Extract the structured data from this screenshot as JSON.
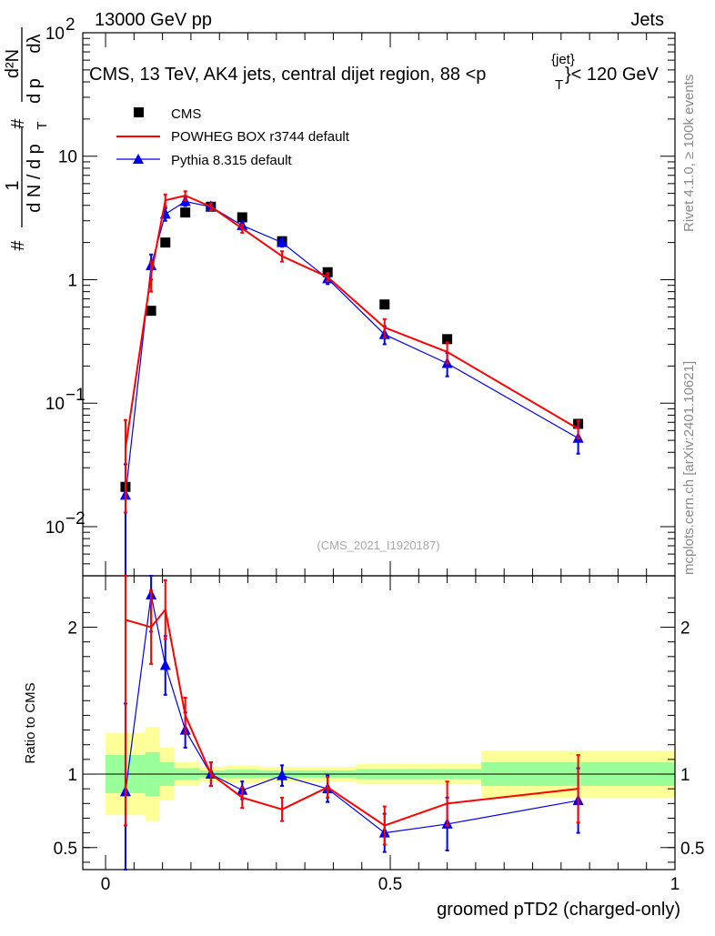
{
  "header": {
    "left": "13000 GeV pp",
    "right": "Jets"
  },
  "side_text": {
    "rivet": "Rivet 4.1.0, ≥ 100k events",
    "mcplots": "mcplots.cern.ch [arXiv:2401.10621]"
  },
  "chart_data": [
    {
      "type": "scatter",
      "panel": "main",
      "title_prefix": "CMS, 13 TeV, AK4 jets, central dijet region, 88 <",
      "title_pt": "p",
      "title_sub": "T",
      "title_sup": "{jet}",
      "title_suffix": "}< 120 GeV",
      "ylabel": {
        "hash1": "#",
        "one": "1",
        "dN": "d N / d p",
        "T": "T",
        "hash2": "#",
        "d2N": "d²N",
        "dpt": "d p",
        "dl": "dλ"
      },
      "ylog": true,
      "ylim": [
        0.004,
        100
      ],
      "xlim": [
        -0.04,
        1.0
      ],
      "yticks": [
        {
          "value": 100,
          "base": "10",
          "exp": "2"
        },
        {
          "value": 10,
          "base": "10",
          "exp": ""
        },
        {
          "value": 1,
          "base": "1",
          "exp": ""
        },
        {
          "value": 0.1,
          "base": "10",
          "exp": "−1"
        },
        {
          "value": 0.01,
          "base": "10",
          "exp": "−2"
        }
      ],
      "watermark": "(CMS_2021_I1920187)",
      "legend": [
        {
          "name": "CMS",
          "style": "square",
          "color": "#000000"
        },
        {
          "name": "POWHEG BOX r3744 default",
          "style": "line",
          "color": "#ff0000"
        },
        {
          "name": "Pythia 8.315 default",
          "style": "triangle",
          "color": "#0000ee"
        }
      ],
      "series": [
        {
          "name": "CMS",
          "color": "#000000",
          "x": [
            0.035,
            0.08,
            0.105,
            0.14,
            0.185,
            0.24,
            0.31,
            0.39,
            0.49,
            0.6,
            0.83
          ],
          "y": [
            0.021,
            0.56,
            2.0,
            3.5,
            3.9,
            3.2,
            2.05,
            1.15,
            0.63,
            0.33,
            0.068
          ]
        },
        {
          "name": "POWHEG BOX r3744 default",
          "color": "#ff0000",
          "x": [
            0.035,
            0.08,
            0.105,
            0.14,
            0.185,
            0.24,
            0.31,
            0.39,
            0.49,
            0.6,
            0.83
          ],
          "y": [
            0.043,
            1.1,
            4.4,
            4.8,
            3.9,
            2.6,
            1.55,
            1.05,
            0.41,
            0.26,
            0.062
          ],
          "err": [
            0.03,
            0.3,
            0.5,
            0.4,
            0.25,
            0.2,
            0.15,
            0.08,
            0.07,
            0.05,
            0.01
          ]
        },
        {
          "name": "Pythia 8.315 default",
          "color": "#0000ee",
          "x": [
            0.035,
            0.08,
            0.105,
            0.14,
            0.185,
            0.24,
            0.31,
            0.39,
            0.49,
            0.6,
            0.83
          ],
          "y": [
            0.018,
            1.3,
            3.4,
            4.3,
            3.9,
            2.75,
            2.0,
            1.02,
            0.36,
            0.21,
            0.052
          ],
          "err": [
            0.014,
            0.3,
            0.4,
            0.35,
            0.2,
            0.2,
            0.15,
            0.1,
            0.06,
            0.045,
            0.013
          ]
        }
      ]
    },
    {
      "type": "scatter",
      "panel": "ratio",
      "ylabel": "Ratio to CMS",
      "xlabel": "groomed pTD2 (charged-only)",
      "ylim": [
        0.35,
        2.35
      ],
      "xlim": [
        -0.04,
        1.0
      ],
      "xticks": [
        {
          "value": 0,
          "label": "0"
        },
        {
          "value": 0.5,
          "label": "0.5"
        },
        {
          "value": 1,
          "label": "1"
        }
      ],
      "yticks": [
        {
          "value": 0.5,
          "label": "0.5"
        },
        {
          "value": 1,
          "label": "1"
        },
        {
          "value": 2,
          "label": "2"
        }
      ],
      "bands": {
        "x_edges": [
          0.0,
          0.07,
          0.095,
          0.12,
          0.165,
          0.21,
          0.27,
          0.35,
          0.44,
          0.54,
          0.66,
          1.0
        ],
        "yellow": [
          0.28,
          0.32,
          0.18,
          0.08,
          0.05,
          0.06,
          0.05,
          0.05,
          0.07,
          0.07,
          0.16
        ],
        "green": [
          0.13,
          0.15,
          0.08,
          0.04,
          0.025,
          0.03,
          0.025,
          0.025,
          0.035,
          0.035,
          0.08
        ]
      },
      "series": [
        {
          "name": "POWHEG BOX r3744 default",
          "color": "#ff0000",
          "x": [
            0.035,
            0.08,
            0.105,
            0.14,
            0.185,
            0.24,
            0.31,
            0.39,
            0.49,
            0.6,
            0.83
          ],
          "y": [
            2.05,
            2.0,
            2.12,
            1.4,
            1.0,
            0.84,
            0.76,
            0.91,
            0.65,
            0.8,
            0.9
          ],
          "err": [
            1.4,
            0.25,
            0.2,
            0.12,
            0.08,
            0.07,
            0.08,
            0.07,
            0.13,
            0.15,
            0.23
          ]
        },
        {
          "name": "Pythia 8.315 default",
          "color": "#0000ee",
          "x": [
            0.035,
            0.08,
            0.105,
            0.14,
            0.185,
            0.24,
            0.31,
            0.39,
            0.49,
            0.6,
            0.83
          ],
          "y": [
            0.88,
            2.22,
            1.74,
            1.3,
            1.0,
            0.89,
            0.99,
            0.9,
            0.6,
            0.66,
            0.82
          ],
          "err": [
            0.6,
            0.25,
            0.2,
            0.12,
            0.08,
            0.06,
            0.07,
            0.09,
            0.13,
            0.18,
            0.22
          ]
        }
      ]
    }
  ]
}
